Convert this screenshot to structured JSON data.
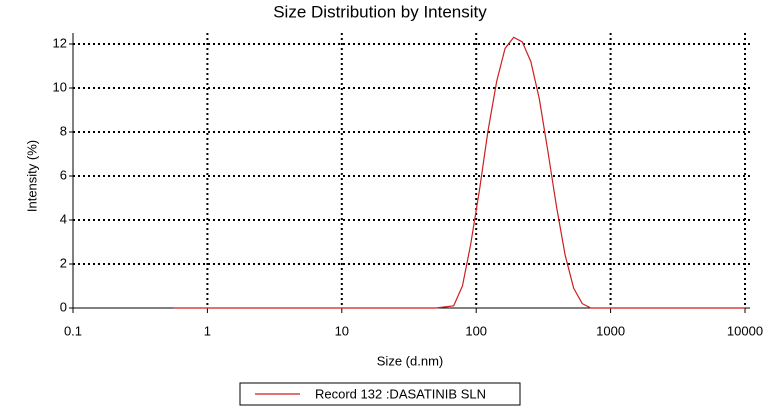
{
  "chart_data": {
    "type": "line",
    "title": "Size Distribution by Intensity",
    "x_label": "Size (d.nm)",
    "y_label": "Intensity (%)",
    "x_scale": "log",
    "x": [
      0.56,
      10,
      50,
      68,
      79,
      91,
      106,
      122,
      142,
      164,
      190,
      220,
      255,
      295,
      342,
      396,
      459,
      531,
      615,
      712,
      1000,
      10000
    ],
    "series": [
      {
        "name": "Record 132 :DASATINIB SLN",
        "color": "#cc1f1f",
        "values": [
          0,
          0,
          0,
          0.1,
          1,
          2.9,
          5.4,
          8,
          10.3,
          11.8,
          12.3,
          12.1,
          11.2,
          9.5,
          7.1,
          4.6,
          2.4,
          0.9,
          0.2,
          0,
          0,
          0
        ]
      }
    ],
    "xlim": [
      0.1,
      10000
    ],
    "xticks": [
      0.1,
      1,
      10,
      100,
      1000,
      10000
    ],
    "ylim": [
      0,
      12.5
    ],
    "yticks": [
      0,
      2,
      4,
      6,
      8,
      10,
      12
    ],
    "grid": true,
    "legend": "bottom"
  }
}
